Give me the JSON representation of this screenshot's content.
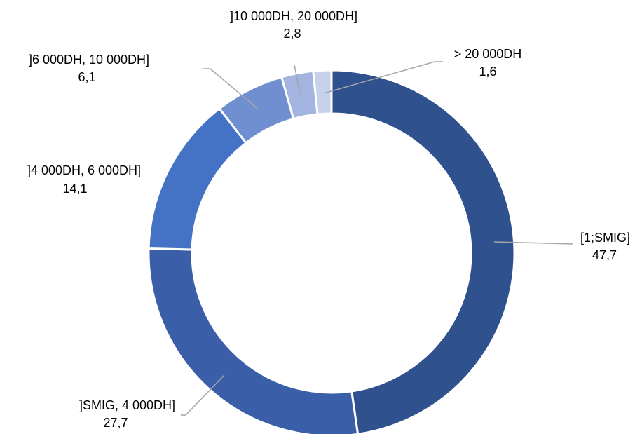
{
  "chart_data": {
    "type": "pie",
    "title": "",
    "categories": [
      "[1;SMIG]",
      "]SMIG, 4 000DH]",
      "]4 000DH, 6 000DH]",
      "]6 000DH, 10 000DH]",
      "]10 000DH, 20 000DH]",
      "> 20 000DH"
    ],
    "values": [
      47.7,
      27.7,
      14.1,
      6.1,
      2.8,
      1.6
    ],
    "value_labels": [
      "47,7",
      "27,7",
      "14,1",
      "6,1",
      "2,8",
      "1,6"
    ],
    "colors": [
      "#2f528f",
      "#3a5fa8",
      "#4472c4",
      "#6f8fd1",
      "#a3b4e0",
      "#c8d1ec"
    ],
    "donut": true,
    "legend": "none",
    "data_labels": "outside-with-leader-lines"
  }
}
